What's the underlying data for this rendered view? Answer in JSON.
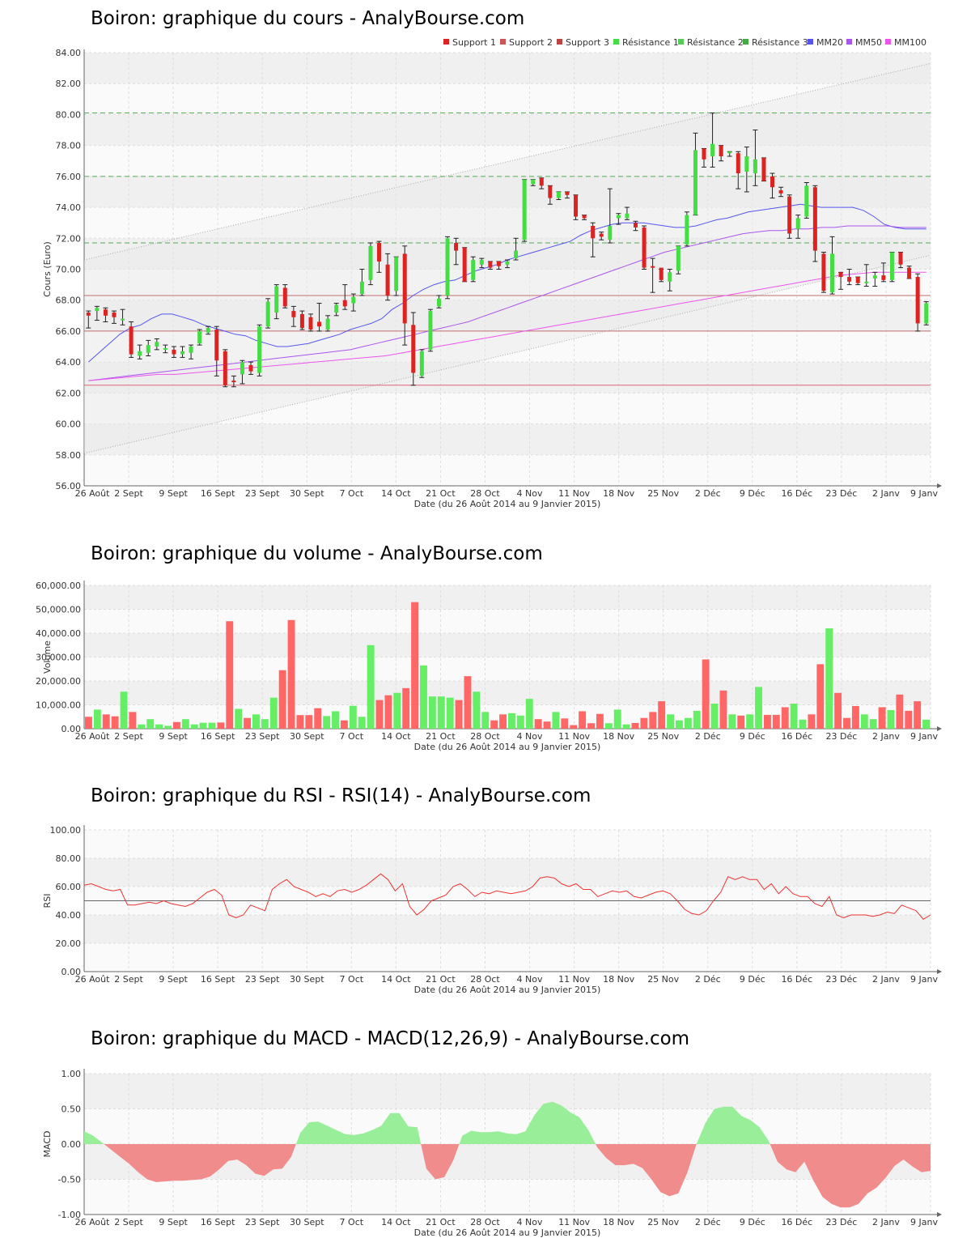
{
  "titles": {
    "price": "Boiron: graphique du cours - AnalyBourse.com",
    "volume": "Boiron: graphique du volume - AnalyBourse.com",
    "rsi": "Boiron: graphique du RSI - RSI(14) - AnalyBourse.com",
    "macd": "Boiron: graphique du MACD - MACD(12,26,9) - AnalyBourse.com"
  },
  "colors": {
    "up": "#44dd44",
    "down": "#dd2222",
    "support": "#c07070",
    "resistance": "#55aa55",
    "mm20": "#5555ee",
    "mm50": "#aa55ee",
    "mm100": "#ee55ee",
    "rsi": "#ee3333",
    "macd_pos": "#99ee99",
    "macd_neg": "#f08c8c"
  },
  "chart_data": [
    {
      "type": "candlestick",
      "title": "Boiron: graphique du cours - AnalyBourse.com",
      "ylabel": "Cours (Euro)",
      "xlabel": "Date (du 26 Août 2014 au 9 Janvier 2015)",
      "ylim": [
        56,
        84
      ],
      "yticks": [
        "56.00",
        "58.00",
        "60.00",
        "62.00",
        "64.00",
        "66.00",
        "68.00",
        "70.00",
        "72.00",
        "74.00",
        "76.00",
        "78.00",
        "80.00",
        "82.00",
        "84.00"
      ],
      "xticks": [
        "26 Août",
        "2 Sept",
        "9 Sept",
        "16 Sept",
        "23 Sept",
        "30 Sept",
        "7 Oct",
        "14 Oct",
        "21 Oct",
        "28 Oct",
        "4 Nov",
        "11 Nov",
        "18 Nov",
        "25 Nov",
        "2 Déc",
        "9 Déc",
        "16 Déc",
        "23 Déc",
        "2 Janv",
        "9 Janv"
      ],
      "legend": [
        "Support 1",
        "Support 2",
        "Support 3",
        "Résistance 1",
        "Résistance 2",
        "Résistance 3",
        "MM20",
        "MM50",
        "MM100"
      ],
      "legend_placement": "top-right",
      "levels": {
        "support": [
          68.3,
          66.0,
          62.5
        ],
        "resistance": [
          71.7,
          76.0,
          80.1
        ]
      },
      "trend_channel": {
        "upper": [
          70.6,
          83.3
        ],
        "lower": [
          58.1,
          70.9
        ]
      },
      "candles": [
        [
          67.2,
          67.0,
          66.2,
          67.3
        ],
        [
          67.3,
          67.5,
          66.7,
          67.6
        ],
        [
          67.4,
          67.0,
          66.6,
          67.5
        ],
        [
          67.2,
          66.9,
          66.5,
          67.3
        ],
        [
          66.8,
          66.8,
          66.4,
          67.4
        ],
        [
          66.3,
          64.5,
          64.3,
          66.6
        ],
        [
          64.4,
          64.7,
          64.2,
          65.1
        ],
        [
          64.6,
          65.1,
          64.4,
          65.4
        ],
        [
          65.0,
          65.3,
          64.8,
          65.5
        ],
        [
          64.8,
          64.9,
          64.6,
          65.1
        ],
        [
          64.8,
          64.5,
          64.3,
          65.0
        ],
        [
          64.5,
          64.7,
          64.3,
          65.0
        ],
        [
          64.6,
          65.0,
          64.2,
          65.1
        ],
        [
          65.2,
          66.0,
          65.1,
          66.1
        ],
        [
          65.9,
          66.2,
          65.8,
          66.3
        ],
        [
          66.1,
          64.1,
          63.1,
          66.3
        ],
        [
          64.7,
          62.5,
          62.4,
          64.8
        ],
        [
          62.8,
          62.7,
          62.4,
          63.1
        ],
        [
          63.2,
          64.0,
          62.6,
          64.1
        ],
        [
          63.8,
          63.4,
          63.2,
          64.0
        ],
        [
          63.3,
          66.3,
          63.1,
          66.4
        ],
        [
          66.3,
          67.9,
          66.2,
          68.1
        ],
        [
          67.2,
          68.9,
          66.8,
          69.0
        ],
        [
          68.8,
          67.6,
          67.5,
          69.0
        ],
        [
          67.3,
          66.9,
          66.3,
          67.6
        ],
        [
          67.1,
          66.2,
          66.1,
          67.3
        ],
        [
          66.9,
          66.1,
          66.0,
          67.1
        ],
        [
          66.6,
          66.3,
          66.0,
          67.8
        ],
        [
          66.1,
          66.8,
          66.0,
          67.0
        ],
        [
          67.2,
          67.7,
          67.0,
          67.8
        ],
        [
          68.0,
          67.6,
          67.4,
          69.0
        ],
        [
          67.8,
          68.2,
          67.3,
          68.4
        ],
        [
          68.4,
          69.2,
          68.3,
          70.0
        ],
        [
          69.3,
          71.5,
          69.0,
          71.7
        ],
        [
          71.7,
          70.5,
          69.8,
          71.8
        ],
        [
          70.3,
          68.3,
          68.0,
          71.0
        ],
        [
          68.6,
          70.8,
          68.3,
          70.8
        ],
        [
          71.0,
          66.5,
          65.1,
          71.5
        ],
        [
          66.4,
          63.3,
          62.5,
          67.2
        ],
        [
          63.1,
          64.7,
          63.0,
          64.8
        ],
        [
          64.8,
          67.3,
          64.7,
          67.4
        ],
        [
          67.6,
          68.1,
          67.5,
          68.3
        ],
        [
          68.3,
          72.0,
          68.1,
          72.1
        ],
        [
          71.7,
          71.2,
          70.3,
          72.0
        ],
        [
          71.4,
          69.2,
          69.2,
          71.4
        ],
        [
          69.3,
          70.6,
          69.2,
          70.8
        ],
        [
          70.3,
          70.6,
          70.1,
          70.7
        ],
        [
          70.5,
          70.1,
          70.0,
          70.5
        ],
        [
          70.5,
          70.2,
          70.0,
          70.5
        ],
        [
          70.3,
          70.5,
          70.1,
          70.6
        ],
        [
          70.7,
          71.2,
          70.6,
          72.0
        ],
        [
          71.9,
          75.8,
          71.8,
          75.8
        ],
        [
          75.5,
          75.8,
          75.4,
          75.8
        ],
        [
          75.9,
          75.4,
          75.2,
          75.9
        ],
        [
          75.4,
          74.6,
          74.2,
          75.4
        ],
        [
          74.6,
          75.0,
          74.5,
          75.0
        ],
        [
          75.0,
          74.8,
          74.6,
          75.0
        ],
        [
          74.8,
          73.4,
          73.2,
          74.8
        ],
        [
          73.5,
          73.3,
          73.2,
          73.5
        ],
        [
          72.8,
          72.0,
          70.8,
          73.0
        ],
        [
          72.3,
          72.1,
          71.9,
          72.4
        ],
        [
          71.9,
          72.8,
          71.7,
          75.2
        ],
        [
          73.3,
          73.5,
          72.9,
          73.6
        ],
        [
          73.3,
          73.6,
          73.2,
          74.0
        ],
        [
          73.0,
          72.7,
          72.5,
          73.1
        ],
        [
          72.7,
          70.1,
          70.0,
          72.8
        ],
        [
          70.2,
          70.1,
          68.5,
          70.7
        ],
        [
          70.1,
          69.3,
          69.2,
          70.0
        ],
        [
          69.2,
          69.8,
          68.6,
          70.0
        ],
        [
          69.9,
          71.5,
          69.7,
          71.5
        ],
        [
          71.6,
          73.5,
          71.5,
          73.7
        ],
        [
          73.5,
          77.7,
          73.5,
          78.8
        ],
        [
          77.8,
          77.1,
          76.6,
          77.8
        ],
        [
          77.3,
          78.1,
          76.6,
          80.1
        ],
        [
          78.0,
          77.3,
          77.0,
          78.0
        ],
        [
          77.5,
          77.6,
          77.3,
          77.6
        ],
        [
          77.5,
          76.2,
          75.2,
          77.6
        ],
        [
          76.3,
          77.3,
          75.0,
          77.9
        ],
        [
          76.2,
          77.1,
          75.4,
          79.0
        ],
        [
          77.2,
          75.7,
          75.7,
          77.2
        ],
        [
          76.0,
          75.3,
          74.6,
          76.2
        ],
        [
          75.1,
          74.9,
          74.7,
          75.3
        ],
        [
          74.7,
          72.3,
          72.0,
          74.8
        ],
        [
          72.6,
          73.3,
          72.0,
          73.5
        ],
        [
          73.4,
          75.4,
          73.3,
          75.6
        ],
        [
          75.3,
          71.2,
          70.5,
          75.4
        ],
        [
          71.0,
          68.6,
          68.5,
          71.1
        ],
        [
          68.5,
          71.0,
          68.4,
          72.1
        ],
        [
          69.8,
          69.5,
          68.7,
          69.8
        ],
        [
          69.5,
          69.2,
          69.0,
          70.0
        ],
        [
          69.5,
          69.1,
          69.0,
          69.5
        ],
        [
          69.2,
          69.2,
          68.9,
          70.3
        ],
        [
          69.4,
          69.6,
          68.9,
          69.8
        ],
        [
          69.6,
          69.3,
          69.2,
          70.4
        ],
        [
          69.3,
          71.1,
          69.2,
          71.1
        ],
        [
          71.1,
          70.3,
          70.1,
          71.1
        ],
        [
          70.1,
          69.4,
          69.4,
          70.2
        ],
        [
          69.5,
          66.5,
          66.0,
          69.7
        ],
        [
          66.5,
          67.8,
          66.4,
          67.9
        ]
      ],
      "mm20": [
        64.0,
        64.6,
        65.2,
        65.8,
        66.2,
        66.4,
        66.8,
        67.1,
        67.1,
        66.9,
        66.7,
        66.4,
        66.2,
        66.0,
        65.8,
        65.7,
        65.4,
        65.2,
        65.0,
        65.0,
        65.1,
        65.2,
        65.4,
        65.6,
        65.8,
        66.1,
        66.3,
        66.5,
        66.8,
        67.4,
        67.8,
        68.3,
        68.7,
        69.0,
        69.2,
        69.3,
        69.6,
        69.9,
        70.1,
        70.3,
        70.6,
        70.8,
        71.0,
        71.2,
        71.4,
        71.6,
        71.8,
        72.2,
        72.5,
        72.7,
        72.9,
        73.0,
        73.0,
        73.0,
        72.9,
        72.8,
        72.7,
        72.7,
        72.8,
        73.0,
        73.2,
        73.3,
        73.5,
        73.7,
        73.8,
        73.9,
        74.0,
        74.1,
        74.2,
        74.1,
        74.0,
        74.0,
        74.0,
        74.0,
        73.8,
        73.4,
        72.9,
        72.7,
        72.6,
        72.6,
        72.6
      ],
      "mm50": [
        62.8,
        62.9,
        63.0,
        63.1,
        63.2,
        63.3,
        63.4,
        63.5,
        63.6,
        63.7,
        63.8,
        63.9,
        64.0,
        64.1,
        64.2,
        64.3,
        64.4,
        64.5,
        64.6,
        64.7,
        64.8,
        65.0,
        65.2,
        65.4,
        65.6,
        65.8,
        66.0,
        66.2,
        66.4,
        66.6,
        66.9,
        67.2,
        67.5,
        67.8,
        68.1,
        68.4,
        68.7,
        69.0,
        69.3,
        69.6,
        69.9,
        70.2,
        70.5,
        70.8,
        71.1,
        71.3,
        71.5,
        71.7,
        71.9,
        72.1,
        72.3,
        72.4,
        72.5,
        72.5,
        72.6,
        72.6,
        72.7,
        72.7,
        72.8,
        72.8,
        72.8,
        72.8,
        72.7,
        72.7,
        72.7
      ],
      "mm100": [
        62.8,
        62.9,
        63.0,
        63.1,
        63.2,
        63.2,
        63.3,
        63.4,
        63.5,
        63.6,
        63.7,
        63.8,
        63.9,
        64.0,
        64.1,
        64.2,
        64.3,
        64.4,
        64.6,
        64.8,
        65.0,
        65.2,
        65.4,
        65.6,
        65.8,
        66.0,
        66.2,
        66.4,
        66.6,
        66.8,
        67.0,
        67.2,
        67.4,
        67.6,
        67.8,
        68.0,
        68.2,
        68.4,
        68.6,
        68.8,
        69.0,
        69.2,
        69.4,
        69.6,
        69.7,
        69.8,
        69.8,
        69.8,
        69.8
      ]
    },
    {
      "type": "bar",
      "title": "Boiron: graphique du volume - AnalyBourse.com",
      "ylabel": "Volume",
      "xlabel": "Date (du 26 Août 2014 au 9 Janvier 2015)",
      "ylim": [
        0,
        60000
      ],
      "yticks": [
        "0.00",
        "10,000.00",
        "20,000.00",
        "30,000.00",
        "40,000.00",
        "50,000.00",
        "60,000.00"
      ],
      "xticks": [
        "26 Août",
        "2 Sept",
        "9 Sept",
        "16 Sept",
        "23 Sept",
        "30 Sept",
        "7 Oct",
        "14 Oct",
        "21 Oct",
        "28 Oct",
        "4 Nov",
        "11 Nov",
        "18 Nov",
        "25 Nov",
        "2 Déc",
        "9 Déc",
        "16 Déc",
        "23 Déc",
        "2 Janv",
        "9 Janv"
      ],
      "values": [
        5000,
        8000,
        6000,
        5200,
        15500,
        7000,
        1800,
        4000,
        1800,
        1200,
        2800,
        4000,
        1800,
        2500,
        2500,
        2600,
        45000,
        8300,
        4500,
        6000,
        4000,
        13000,
        24500,
        45500,
        5700,
        5700,
        8600,
        5300,
        7300,
        3500,
        9600,
        5000,
        35000,
        12000,
        14000,
        15000,
        17000,
        53000,
        26500,
        13500,
        13500,
        13000,
        12000,
        22000,
        15500,
        7000,
        3500,
        6000,
        6500,
        5500,
        12500,
        4000,
        3000,
        7000,
        4300,
        1500,
        7300,
        2300,
        6200,
        2300,
        8000,
        1800,
        2400,
        4500,
        7000,
        11500,
        6000,
        3500,
        4500,
        7500,
        29000,
        10500,
        16000,
        6000,
        5500,
        6000,
        17500,
        5800,
        5800,
        9000,
        10500,
        3800,
        6000,
        27000,
        42000,
        15000,
        4500,
        9500,
        6000,
        4000,
        9000,
        7800,
        14300,
        7500,
        11500,
        3800
      ]
    },
    {
      "type": "line",
      "title": "Boiron: graphique du RSI - RSI(14) - AnalyBourse.com",
      "ylabel": "RSI",
      "xlabel": "Date (du 26 Août 2014 au 9 Janvier 2015)",
      "ylim": [
        0,
        100
      ],
      "yticks": [
        "0.00",
        "20.00",
        "40.00",
        "60.00",
        "80.00",
        "100.00"
      ],
      "xticks": [
        "26 Août",
        "2 Sept",
        "9 Sept",
        "16 Sept",
        "23 Sept",
        "30 Sept",
        "7 Oct",
        "14 Oct",
        "21 Oct",
        "28 Oct",
        "4 Nov",
        "11 Nov",
        "18 Nov",
        "25 Nov",
        "2 Déc",
        "9 Déc",
        "16 Déc",
        "23 Déc",
        "2 Janv",
        "9 Janv"
      ],
      "reference": 50,
      "values": [
        61,
        62,
        60,
        58,
        57,
        58,
        47,
        47,
        48,
        49,
        48,
        50,
        48,
        47,
        46,
        48,
        52,
        56,
        58,
        54,
        40,
        38,
        40,
        47,
        45,
        43,
        58,
        62,
        65,
        60,
        58,
        56,
        53,
        55,
        53,
        57,
        58,
        56,
        58,
        61,
        65,
        69,
        65,
        57,
        62,
        46,
        40,
        44,
        50,
        52,
        54,
        60,
        62,
        58,
        53,
        56,
        55,
        57,
        56,
        55,
        56,
        57,
        60,
        66,
        67,
        66,
        62,
        60,
        62,
        58,
        58,
        53,
        55,
        57,
        56,
        57,
        53,
        52,
        54,
        56,
        57,
        55,
        50,
        44,
        41,
        40,
        43,
        50,
        56,
        67,
        65,
        67,
        65,
        65,
        58,
        62,
        55,
        60,
        55,
        53,
        53,
        48,
        46,
        53,
        40,
        38,
        40,
        40,
        40,
        39,
        40,
        42,
        41,
        47,
        45,
        43,
        37,
        40
      ]
    },
    {
      "type": "area",
      "title": "Boiron: graphique du MACD - MACD(12,26,9) - AnalyBourse.com",
      "ylabel": "MACD",
      "xlabel": "Date (du 26 Août 2014 au 9 Janvier 2015)",
      "ylim": [
        -1.0,
        1.0
      ],
      "yticks": [
        "-1.00",
        "-0.50",
        "0.00",
        "0.50",
        "1.00"
      ],
      "xticks": [
        "26 Août",
        "2 Sept",
        "9 Sept",
        "16 Sept",
        "23 Sept",
        "30 Sept",
        "7 Oct",
        "14 Oct",
        "21 Oct",
        "28 Oct",
        "4 Nov",
        "11 Nov",
        "18 Nov",
        "25 Nov",
        "2 Déc",
        "9 Déc",
        "16 Déc",
        "23 Déc",
        "2 Janv",
        "9 Janv"
      ],
      "values": [
        0.18,
        0.12,
        0.02,
        -0.08,
        -0.18,
        -0.28,
        -0.4,
        -0.5,
        -0.54,
        -0.53,
        -0.52,
        -0.52,
        -0.51,
        -0.5,
        -0.46,
        -0.36,
        -0.24,
        -0.22,
        -0.3,
        -0.42,
        -0.45,
        -0.36,
        -0.35,
        -0.18,
        0.16,
        0.31,
        0.32,
        0.26,
        0.2,
        0.14,
        0.13,
        0.15,
        0.2,
        0.26,
        0.44,
        0.44,
        0.25,
        0.24,
        -0.35,
        -0.5,
        -0.47,
        -0.23,
        0.12,
        0.19,
        0.17,
        0.17,
        0.18,
        0.15,
        0.14,
        0.18,
        0.41,
        0.57,
        0.6,
        0.55,
        0.45,
        0.38,
        0.2,
        -0.05,
        -0.2,
        -0.3,
        -0.3,
        -0.28,
        -0.34,
        -0.5,
        -0.68,
        -0.74,
        -0.7,
        -0.4,
        0.0,
        0.3,
        0.5,
        0.53,
        0.53,
        0.4,
        0.34,
        0.24,
        0.05,
        -0.25,
        -0.36,
        -0.4,
        -0.25,
        -0.52,
        -0.75,
        -0.85,
        -0.9,
        -0.9,
        -0.85,
        -0.7,
        -0.62,
        -0.48,
        -0.31,
        -0.22,
        -0.32,
        -0.4,
        -0.38
      ]
    }
  ]
}
